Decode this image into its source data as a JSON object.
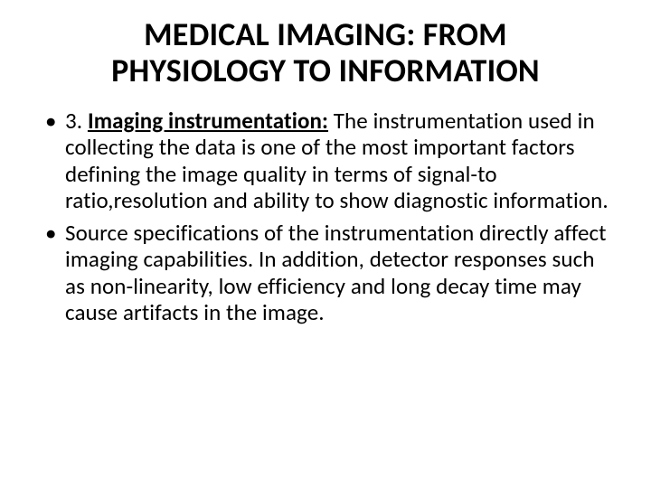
{
  "slide": {
    "background_color": "#ffffff",
    "text_color": "#000000",
    "title": {
      "line1": "MEDICAL IMAGING: FROM",
      "line2": "PHYSIOLOGY TO INFORMATION",
      "fontsize": 36,
      "fontweight": 700,
      "align": "center"
    },
    "bullets": [
      {
        "lead_number": "3. ",
        "lead_text": "Imaging instrumentation:",
        "rest": " The instrumentation used in collecting the data is one of the most important factors defining the image quality in terms of signal-to ratio,resolution and ability to show diagnostic information.",
        "lead_bold": true,
        "lead_underline": true
      },
      {
        "lead_number": "",
        "lead_text": "",
        "rest": "Source specifications of the instrumentation directly affect imaging capabilities. In addition, detector responses such as non-linearity, low efficiency and long decay time may cause artifacts in the image.",
        "lead_bold": false,
        "lead_underline": false
      }
    ],
    "body_fontsize": 25,
    "bullet_glyph": "•"
  }
}
